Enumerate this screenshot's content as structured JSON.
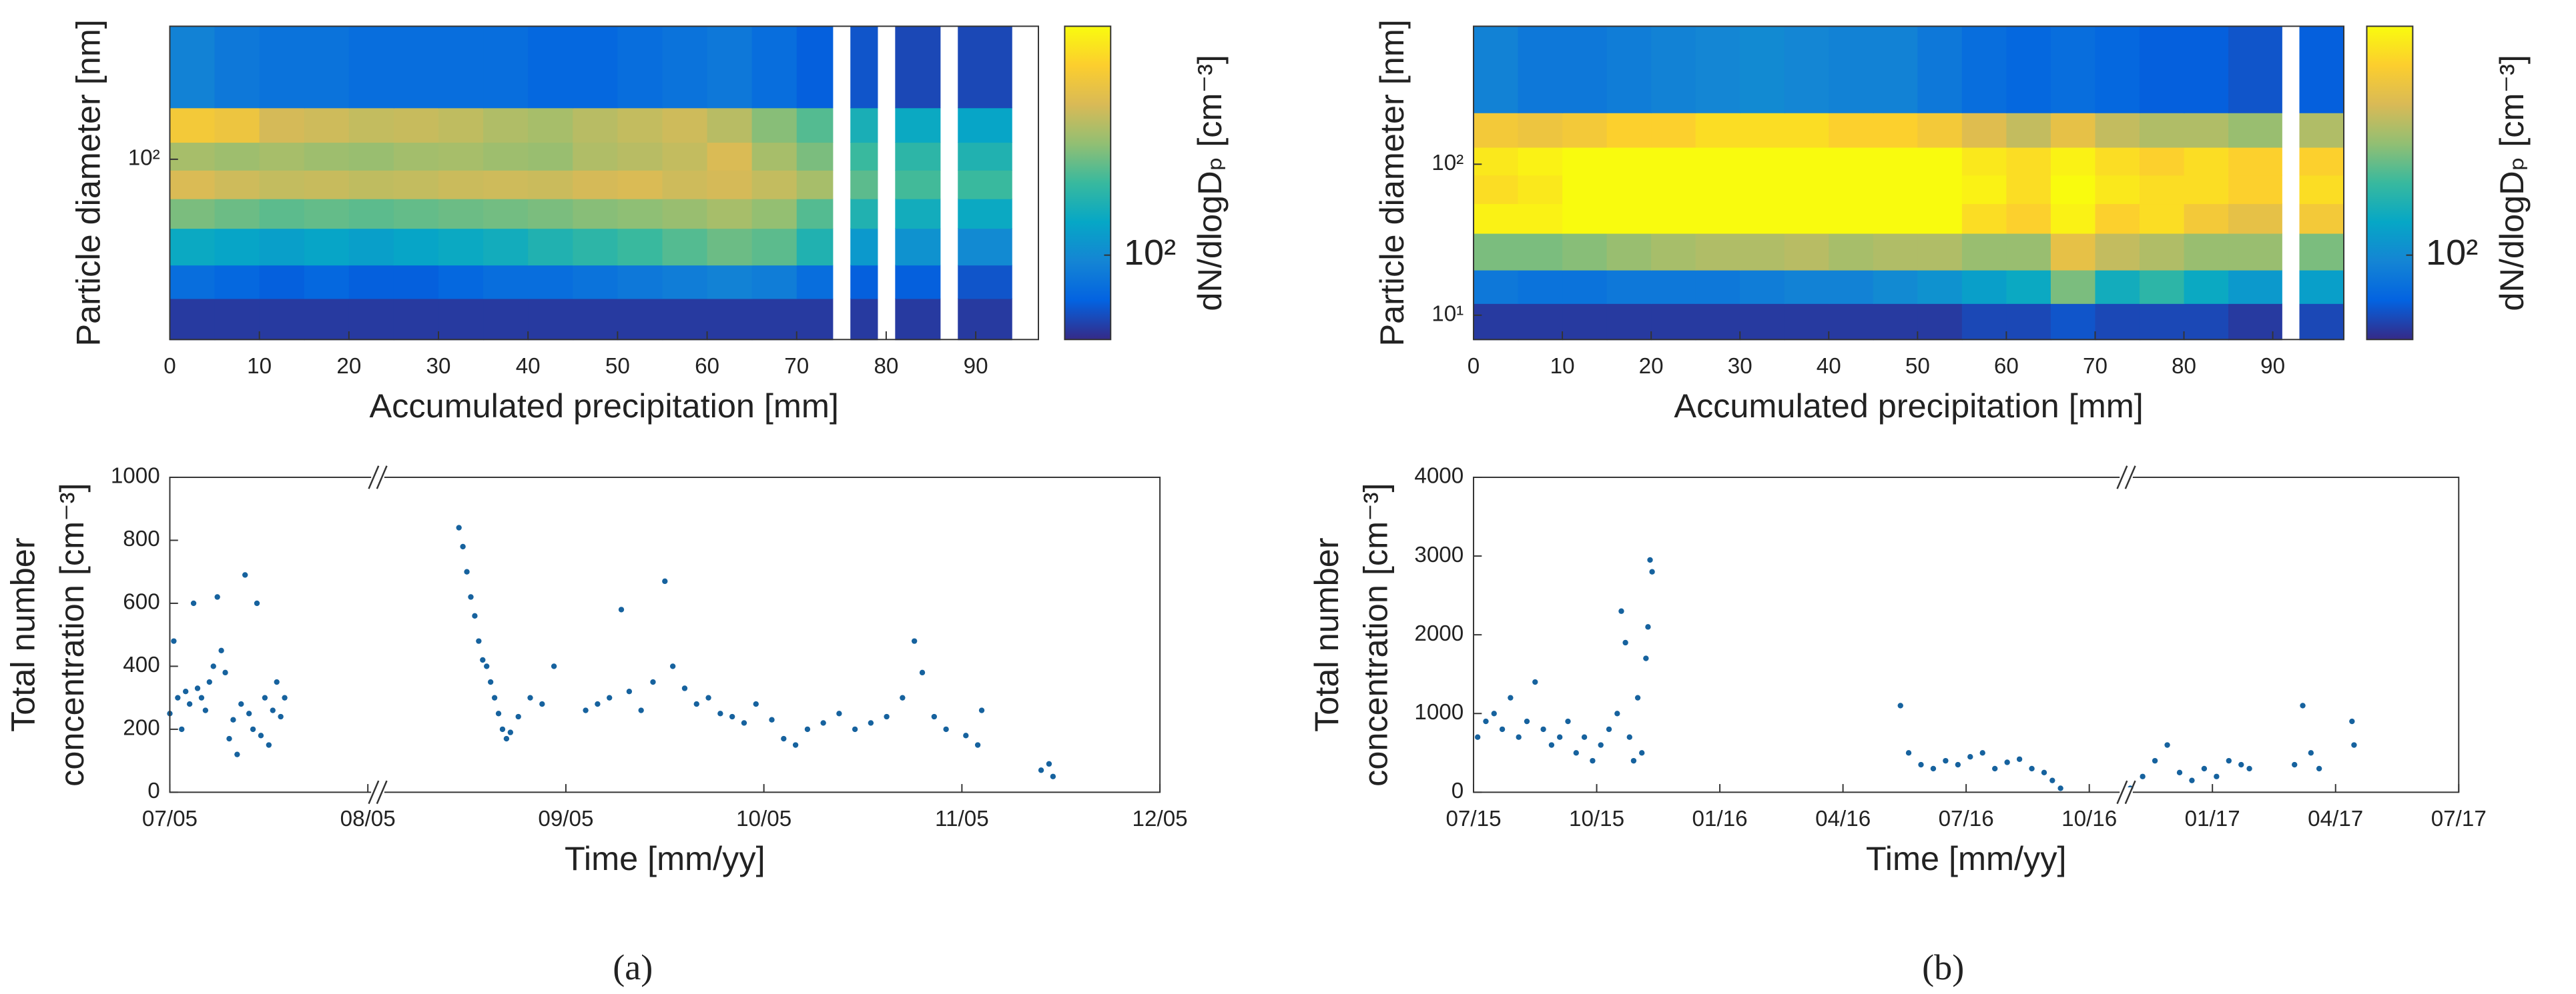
{
  "chart_data": [
    {
      "type": "heatmap",
      "xlabel": "Accumulated precipitation [mm]",
      "ylabel": "Particle diameter [nm]",
      "xlim": [
        0,
        97
      ],
      "xticks": [
        0,
        10,
        20,
        30,
        40,
        50,
        60,
        70,
        80,
        90
      ],
      "ylim": [
        6.4,
        760
      ],
      "log_y": true,
      "yticks": [
        {
          "value": 100,
          "label": "10²"
        }
      ],
      "x_edges": [
        0,
        5,
        10,
        15,
        20,
        25,
        30,
        35,
        40,
        45,
        50,
        55,
        60,
        65,
        70,
        74,
        76,
        79,
        81,
        86,
        88,
        94
      ],
      "y_edges": [
        6.4,
        12,
        20,
        35,
        55,
        85,
        130,
        220,
        760
      ],
      "z": [
        [
          45,
          45,
          45,
          45,
          45,
          45,
          45,
          45,
          45,
          45,
          45,
          45,
          45,
          45,
          45,
          null,
          45,
          null,
          45,
          null,
          45
        ],
        [
          70,
          65,
          60,
          65,
          60,
          60,
          65,
          70,
          70,
          75,
          80,
          85,
          90,
          85,
          70,
          null,
          60,
          null,
          60,
          null,
          55
        ],
        [
          150,
          140,
          130,
          140,
          130,
          140,
          150,
          160,
          180,
          200,
          220,
          250,
          280,
          260,
          180,
          null,
          120,
          null,
          110,
          null,
          100
        ],
        [
          300,
          280,
          260,
          270,
          260,
          270,
          280,
          290,
          300,
          320,
          330,
          350,
          380,
          340,
          250,
          null,
          180,
          null,
          160,
          null,
          150
        ],
        [
          520,
          480,
          450,
          460,
          440,
          450,
          470,
          480,
          470,
          500,
          520,
          480,
          500,
          450,
          380,
          null,
          260,
          null,
          230,
          null,
          220
        ],
        [
          380,
          360,
          380,
          360,
          350,
          370,
          380,
          360,
          350,
          400,
          420,
          450,
          520,
          380,
          300,
          null,
          220,
          null,
          200,
          null,
          180
        ],
        [
          700,
          650,
          500,
          480,
          450,
          460,
          440,
          400,
          380,
          420,
          450,
          480,
          420,
          320,
          250,
          null,
          170,
          null,
          150,
          null,
          140
        ],
        [
          90,
          80,
          75,
          75,
          70,
          70,
          70,
          70,
          65,
          65,
          70,
          75,
          80,
          70,
          60,
          null,
          55,
          null,
          50,
          null,
          50
        ]
      ],
      "clim": [
        40,
        1200
      ],
      "colorbar_ticks": [
        {
          "value": 100,
          "label": "10²"
        }
      ],
      "colorbar_label": "dN/dlogDₚ [cm⁻³]",
      "colormap": [
        "#352a87",
        "#0363e1",
        "#1485d4",
        "#06a7c6",
        "#38b99e",
        "#92bf73",
        "#d9ba56",
        "#fcce2e",
        "#f9fb0e"
      ]
    },
    {
      "type": "heatmap",
      "xlabel": "Accumulated precipitation [mm]",
      "ylabel": "Particle diameter [nm]",
      "xlim": [
        0,
        98
      ],
      "xticks": [
        0,
        10,
        20,
        30,
        40,
        50,
        60,
        70,
        80,
        90
      ],
      "ylim": [
        6.9,
        820
      ],
      "log_y": true,
      "yticks": [
        {
          "value": 10,
          "label": "10¹"
        },
        {
          "value": 100,
          "label": "10²"
        }
      ],
      "x_edges": [
        0,
        5,
        10,
        15,
        20,
        25,
        30,
        35,
        40,
        45,
        50,
        55,
        60,
        65,
        70,
        75,
        80,
        85,
        91,
        93,
        98
      ],
      "y_edges": [
        6.9,
        12,
        20,
        35,
        55,
        85,
        130,
        220,
        820
      ],
      "z": [
        [
          45,
          45,
          45,
          45,
          45,
          45,
          45,
          45,
          45,
          45,
          45,
          50,
          50,
          55,
          50,
          50,
          50,
          45,
          null,
          50
        ],
        [
          80,
          75,
          75,
          80,
          80,
          80,
          85,
          90,
          90,
          100,
          110,
          130,
          150,
          300,
          160,
          200,
          150,
          120,
          null,
          130
        ],
        [
          300,
          300,
          320,
          350,
          380,
          400,
          400,
          420,
          380,
          400,
          400,
          350,
          350,
          600,
          450,
          400,
          350,
          350,
          null,
          300
        ],
        [
          1100,
          1100,
          1200,
          1300,
          1400,
          1400,
          1400,
          1300,
          1300,
          1300,
          1200,
          900,
          800,
          1100,
          800,
          900,
          700,
          600,
          null,
          700
        ],
        [
          900,
          1000,
          1200,
          1400,
          1400,
          1500,
          1400,
          1400,
          1400,
          1400,
          1300,
          1100,
          900,
          1200,
          1000,
          900,
          900,
          800,
          null,
          900
        ],
        [
          1000,
          1100,
          1200,
          1400,
          1300,
          1400,
          1400,
          1300,
          1300,
          1300,
          1200,
          1000,
          900,
          1100,
          900,
          800,
          900,
          800,
          null,
          800
        ],
        [
          700,
          650,
          700,
          800,
          800,
          900,
          900,
          900,
          800,
          800,
          700,
          550,
          450,
          600,
          450,
          400,
          400,
          350,
          null,
          400
        ],
        [
          90,
          80,
          80,
          85,
          90,
          95,
          100,
          95,
          90,
          90,
          80,
          70,
          65,
          70,
          65,
          60,
          60,
          55,
          null,
          60
        ]
      ],
      "clim": [
        40,
        1200
      ],
      "colorbar_ticks": [
        {
          "value": 100,
          "label": "10²"
        }
      ],
      "colorbar_label": "dN/dlogDₚ [cm⁻³]",
      "colormap": [
        "#352a87",
        "#0363e1",
        "#1485d4",
        "#06a7c6",
        "#38b99e",
        "#92bf73",
        "#d9ba56",
        "#fcce2e",
        "#f9fb0e"
      ]
    },
    {
      "type": "scatter",
      "xlabel": "Time [mm/yy]",
      "ylabel": [
        "Total number",
        "concentration [cm⁻³]"
      ],
      "color": "#16629e",
      "xlim": [
        7,
        12
      ],
      "xticks": [
        {
          "value": 7,
          "label": "07/05"
        },
        {
          "value": 8,
          "label": "08/05"
        },
        {
          "value": 9,
          "label": "09/05"
        },
        {
          "value": 10,
          "label": "10/05"
        },
        {
          "value": 11,
          "label": "11/05"
        },
        {
          "value": 12,
          "label": "12/05"
        }
      ],
      "ylim": [
        0,
        1000
      ],
      "yticks": [
        0,
        200,
        400,
        600,
        800,
        1000
      ],
      "axis_break": 8.05,
      "x": [
        7.0,
        7.02,
        7.04,
        7.06,
        7.08,
        7.1,
        7.12,
        7.14,
        7.16,
        7.18,
        7.2,
        7.22,
        7.24,
        7.26,
        7.28,
        7.3,
        7.32,
        7.34,
        7.36,
        7.38,
        7.4,
        7.42,
        7.44,
        7.46,
        7.48,
        7.5,
        7.52,
        7.54,
        7.56,
        7.58,
        8.46,
        8.48,
        8.5,
        8.52,
        8.54,
        8.56,
        8.58,
        8.6,
        8.62,
        8.64,
        8.66,
        8.68,
        8.7,
        8.72,
        8.76,
        8.82,
        8.88,
        8.94,
        9.1,
        9.16,
        9.22,
        9.28,
        9.32,
        9.38,
        9.44,
        9.5,
        9.54,
        9.6,
        9.66,
        9.72,
        9.78,
        9.84,
        9.9,
        9.96,
        10.04,
        10.1,
        10.16,
        10.22,
        10.3,
        10.38,
        10.46,
        10.54,
        10.62,
        10.7,
        10.76,
        10.8,
        10.86,
        10.92,
        11.02,
        11.08,
        11.1,
        11.4,
        11.44,
        11.46
      ],
      "values": [
        250,
        480,
        300,
        200,
        320,
        280,
        600,
        330,
        300,
        260,
        350,
        400,
        620,
        450,
        380,
        170,
        230,
        120,
        280,
        690,
        250,
        200,
        600,
        180,
        300,
        150,
        260,
        350,
        240,
        300,
        840,
        780,
        700,
        620,
        560,
        480,
        420,
        400,
        350,
        300,
        250,
        200,
        170,
        190,
        240,
        300,
        280,
        400,
        260,
        280,
        300,
        580,
        320,
        260,
        350,
        670,
        400,
        330,
        280,
        300,
        250,
        240,
        220,
        280,
        230,
        170,
        150,
        200,
        220,
        250,
        200,
        220,
        240,
        300,
        480,
        380,
        240,
        200,
        180,
        150,
        260,
        70,
        90,
        50
      ]
    },
    {
      "type": "scatter",
      "xlabel": "Time [mm/yy]",
      "ylabel": [
        "Total number",
        "concentration [cm⁻³]"
      ],
      "color": "#16629e",
      "xlim": [
        0,
        24
      ],
      "xticks": [
        {
          "value": 0,
          "label": "07/15"
        },
        {
          "value": 3,
          "label": "10/15"
        },
        {
          "value": 6,
          "label": "01/16"
        },
        {
          "value": 9,
          "label": "04/16"
        },
        {
          "value": 12,
          "label": "07/16"
        },
        {
          "value": 15,
          "label": "10/16"
        },
        {
          "value": 18,
          "label": "01/17"
        },
        {
          "value": 21,
          "label": "04/17"
        },
        {
          "value": 24,
          "label": "07/17"
        }
      ],
      "ylim": [
        0,
        4000
      ],
      "yticks": [
        0,
        1000,
        2000,
        3000,
        4000
      ],
      "axis_break": 15.9,
      "x": [
        0.1,
        0.3,
        0.5,
        0.7,
        0.9,
        1.1,
        1.3,
        1.5,
        1.7,
        1.9,
        2.1,
        2.3,
        2.5,
        2.7,
        2.9,
        3.1,
        3.3,
        3.5,
        3.6,
        3.7,
        3.8,
        3.9,
        4.0,
        4.1,
        4.2,
        4.25,
        4.3,
        4.35,
        10.4,
        10.6,
        10.9,
        11.2,
        11.5,
        11.8,
        12.1,
        12.4,
        12.7,
        13.0,
        13.3,
        13.6,
        13.9,
        14.1,
        14.3,
        16.0,
        16.3,
        16.6,
        16.9,
        17.2,
        17.5,
        17.8,
        18.1,
        18.4,
        18.7,
        18.9,
        20.0,
        20.2,
        20.4,
        20.6,
        21.4,
        21.45
      ],
      "values": [
        700,
        900,
        1000,
        800,
        1200,
        700,
        900,
        1400,
        800,
        600,
        700,
        900,
        500,
        700,
        400,
        600,
        800,
        1000,
        2300,
        1900,
        700,
        400,
        1200,
        500,
        1700,
        2100,
        2950,
        2800,
        1100,
        500,
        350,
        300,
        400,
        350,
        450,
        500,
        300,
        380,
        420,
        300,
        250,
        150,
        50,
        50,
        200,
        400,
        600,
        250,
        150,
        300,
        200,
        400,
        350,
        300,
        350,
        1100,
        500,
        300,
        900,
        600
      ]
    }
  ],
  "captions": [
    "(a)",
    "(b)"
  ]
}
